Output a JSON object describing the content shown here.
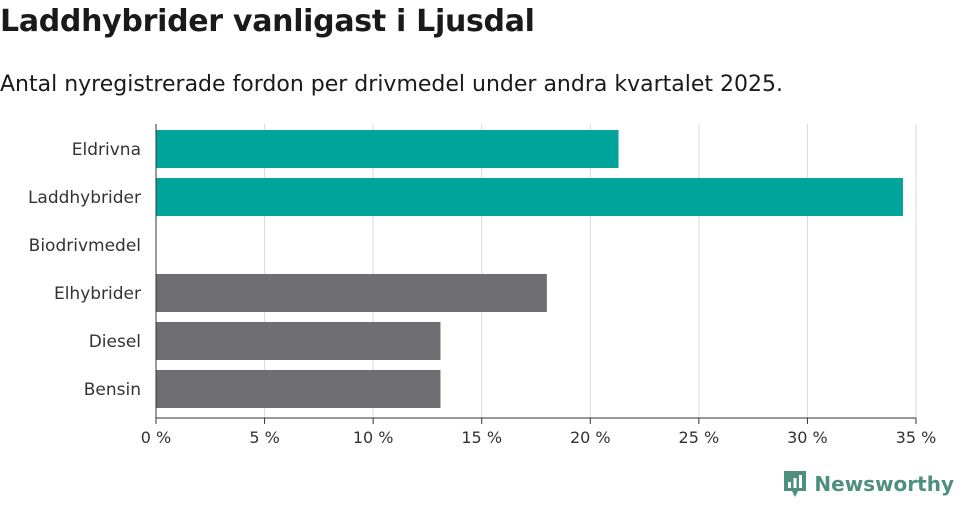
{
  "title": "Laddhybrider vanligast i Ljusdal",
  "subtitle": "Antal nyregistrerade fordon per drivmedel under andra kvartalet 2025.",
  "brand": {
    "name": "Newsworthy",
    "icon": "newsworthy-logo-icon",
    "color": "#4f8f7f"
  },
  "colors": {
    "highlight": "#00a49a",
    "default": "#6d6d72",
    "grid": "#d9d9d9",
    "axis": "#333333"
  },
  "chart_data": {
    "type": "bar",
    "orientation": "horizontal",
    "categories": [
      "Eldrivna",
      "Laddhybrider",
      "Biodrivmedel",
      "Elhybrider",
      "Diesel",
      "Bensin"
    ],
    "values": [
      21.3,
      34.4,
      0,
      18.0,
      13.1,
      13.1
    ],
    "highlighted": [
      true,
      true,
      false,
      false,
      false,
      false
    ],
    "xlim": [
      0,
      35
    ],
    "ticks": [
      0,
      5,
      10,
      15,
      20,
      25,
      30,
      35
    ],
    "tick_labels": [
      "0 %",
      "5 %",
      "10 %",
      "15 %",
      "20 %",
      "25 %",
      "30 %",
      "35 %"
    ],
    "grid": true
  }
}
